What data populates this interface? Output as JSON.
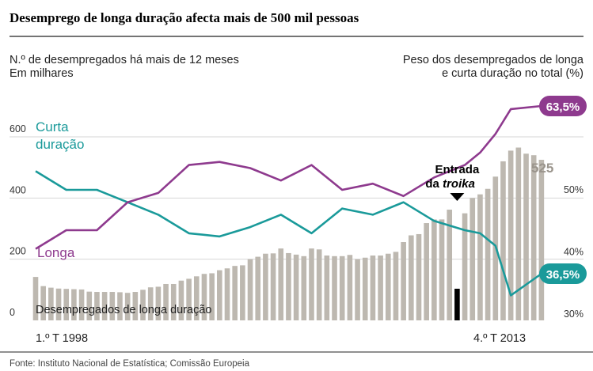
{
  "title": "Desemprego de longa duração afecta mais de 500 mil pessoas",
  "left_axis_label_1": "N.º de desempregados há mais de 12 meses",
  "left_axis_label_2": "Em milhares",
  "right_axis_label_1": "Peso dos desempregados de longa",
  "right_axis_label_2": "e curta duração no total (%)",
  "source": "Fonte: Instituto Nacional de Estatística; Comissão Europeia",
  "colors": {
    "title": "#c8287a",
    "curta": "#1a9a9a",
    "longa": "#8e3a8e",
    "bars": "#bdb8b0",
    "troika": "#000000",
    "grid": "#d6d6d6"
  },
  "chart_data": [
    {
      "type": "bar",
      "title": "Desempregados de longa duração",
      "ylabel": "N.º de desempregados há mais de 12 meses (Em milhares)",
      "ylim": [
        0,
        600
      ],
      "yticks": [
        "0",
        "200",
        "400",
        "600"
      ],
      "x_start_label": "1.º T 1998",
      "x_end_label": "4.º T 2013",
      "values": [
        142,
        112,
        107,
        104,
        103,
        102,
        101,
        94,
        93,
        93,
        93,
        92,
        90,
        93,
        100,
        108,
        110,
        119,
        119,
        130,
        136,
        144,
        152,
        154,
        164,
        170,
        178,
        180,
        200,
        208,
        218,
        219,
        235,
        220,
        215,
        210,
        235,
        232,
        212,
        210,
        210,
        214,
        200,
        205,
        212,
        212,
        218,
        224,
        256,
        278,
        282,
        318,
        330,
        330,
        362,
        365,
        350,
        400,
        412,
        430,
        470,
        520,
        555,
        565,
        545,
        540,
        525
      ],
      "troika_index": 55,
      "troika_label_1": "Entrada",
      "troika_label_2": "da",
      "troika_label_italic": "troika",
      "last_value_label": "525",
      "bar_series_label": "Desempregados de longa duração"
    },
    {
      "type": "line",
      "ylabel": "Peso dos desempregados de longa e curta duração no total (%)",
      "yticks": [
        "30%",
        "40%",
        "50%"
      ],
      "series": [
        {
          "name": "Curta duração",
          "x": [
            0,
            4,
            8,
            12,
            16,
            20,
            24,
            28,
            32,
            36,
            40,
            44,
            48,
            52,
            56,
            58,
            60,
            62,
            66
          ],
          "values": [
            53,
            50,
            50,
            48,
            46,
            43,
            42.5,
            44,
            46,
            43,
            47,
            46,
            48,
            45,
            43.5,
            43,
            41,
            33,
            36.5
          ],
          "end_label": "36,5%"
        },
        {
          "name": "Longa",
          "x": [
            0,
            4,
            8,
            12,
            16,
            20,
            24,
            28,
            32,
            36,
            40,
            44,
            48,
            52,
            56,
            58,
            60,
            62,
            66
          ],
          "values": [
            40.5,
            43.5,
            43.5,
            48,
            49.5,
            54,
            54.5,
            53.5,
            51.5,
            54,
            50,
            51,
            49,
            52,
            54,
            56,
            59,
            63,
            63.5
          ],
          "end_label": "63,5%"
        }
      ]
    }
  ]
}
